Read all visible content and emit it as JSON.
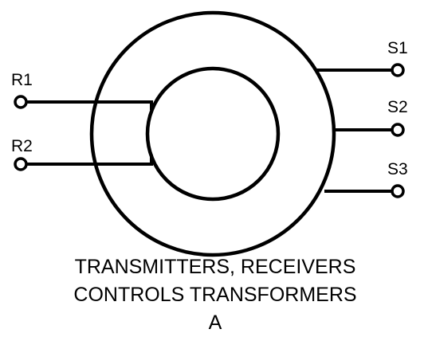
{
  "diagram": {
    "terminals": {
      "r1": "R1",
      "r2": "R2",
      "s1": "S1",
      "s2": "S2",
      "s3": "S3"
    },
    "caption": {
      "line1": "TRANSMITTERS, RECEIVERS",
      "line2": "CONTROLS TRANSFORMERS",
      "line3": "A"
    },
    "colors": {
      "stroke": "#000000",
      "background": "#ffffff"
    }
  }
}
